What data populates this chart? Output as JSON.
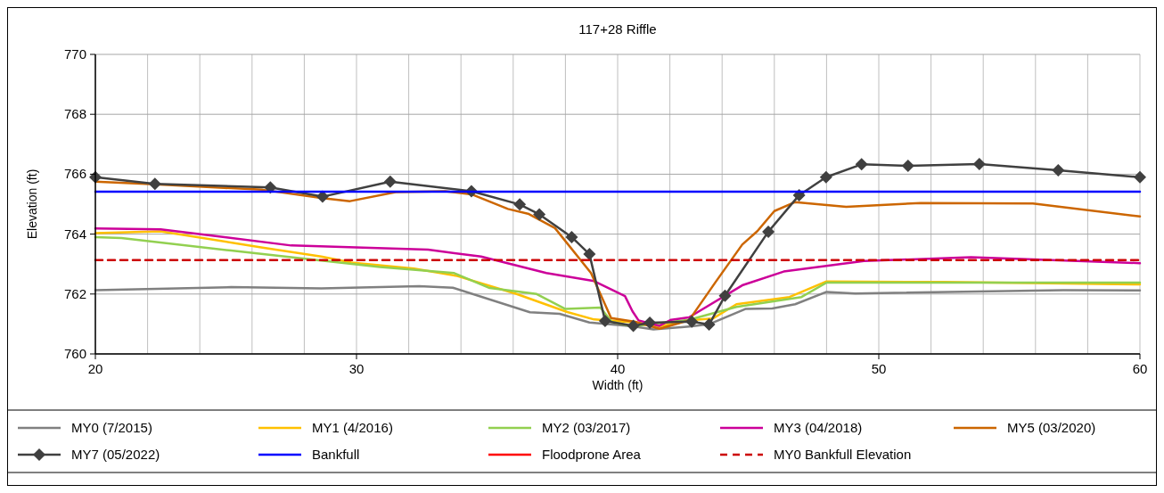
{
  "chart_data": {
    "type": "line",
    "title": "117+28 Riffle",
    "xlabel": "Width (ft)",
    "ylabel": "Elevation (ft)",
    "xlim": [
      20,
      60
    ],
    "ylim": [
      760,
      770
    ],
    "xticks": [
      20,
      {
        "value": 22,
        "label": null
      },
      {
        "value": 24,
        "label": null
      },
      {
        "value": 26,
        "label": null
      },
      {
        "value": 28,
        "label": null
      },
      30,
      {
        "value": 32,
        "label": null
      },
      {
        "value": 34,
        "label": null
      },
      {
        "value": 36,
        "label": null
      },
      {
        "value": 38,
        "label": null
      },
      40,
      {
        "value": 42,
        "label": null
      },
      {
        "value": 44,
        "label": null
      },
      {
        "value": 46,
        "label": null
      },
      {
        "value": 48,
        "label": null
      },
      50,
      {
        "value": 52,
        "label": null
      },
      {
        "value": 54,
        "label": null
      },
      {
        "value": 56,
        "label": null
      },
      {
        "value": 58,
        "label": null
      },
      60
    ],
    "yticks": [
      760,
      762,
      764,
      766,
      768,
      770
    ],
    "grid": true,
    "legend": "bottom",
    "marker": "none",
    "line_style": "solid",
    "series": [
      {
        "name": "MY0 (7/2015)",
        "color": "#808080",
        "x": [
          20,
          25.2,
          28.65,
          32.4,
          33.69,
          36.64,
          37.78,
          38.92,
          40.57,
          41.37,
          42.84,
          43.53,
          44.89,
          45.92,
          46.8,
          48.0,
          49.1,
          57.06,
          60
        ],
        "values": [
          762.13,
          762.23,
          762.19,
          762.26,
          762.21,
          761.39,
          761.34,
          761.05,
          760.92,
          760.82,
          760.92,
          761.0,
          761.5,
          761.52,
          761.66,
          762.07,
          762.02,
          762.13,
          762.12
        ]
      },
      {
        "name": "MY1 (4/2016)",
        "color": "#ffc000",
        "x": [
          20,
          22.5,
          26.4,
          28.65,
          29.8,
          32.2,
          33.86,
          36.13,
          38.07,
          39.1,
          40.68,
          41.6,
          42.73,
          43.64,
          44.55,
          46.58,
          48.0,
          52.5,
          60
        ],
        "values": [
          764.03,
          764.09,
          763.55,
          763.25,
          763.05,
          762.85,
          762.6,
          762.0,
          761.4,
          761.15,
          761.05,
          760.92,
          761.12,
          761.18,
          761.66,
          761.9,
          762.42,
          762.4,
          762.32
        ]
      },
      {
        "name": "MY2 (03/2017)",
        "color": "#92d050",
        "x": [
          20,
          21.0,
          25.2,
          28.65,
          30.9,
          33.74,
          35.1,
          36.9,
          38.0,
          39.34,
          39.77,
          40.57,
          42.73,
          44.55,
          47.04,
          48.0,
          60
        ],
        "values": [
          763.9,
          763.87,
          763.45,
          763.12,
          762.9,
          762.7,
          762.2,
          762.0,
          761.5,
          761.55,
          761.07,
          760.92,
          761.14,
          761.57,
          761.9,
          762.38,
          762.38
        ]
      },
      {
        "name": "MY3 (04/2018)",
        "color": "#cc0099",
        "x": [
          20,
          22.5,
          27.5,
          32.74,
          34.77,
          37.27,
          39.1,
          40.28,
          40.57,
          40.8,
          41.6,
          42.05,
          42.73,
          44.77,
          46.36,
          49.43,
          53.53,
          60
        ],
        "values": [
          764.19,
          764.16,
          763.62,
          763.48,
          763.25,
          762.7,
          762.43,
          761.93,
          761.42,
          761.12,
          760.94,
          761.14,
          761.22,
          762.29,
          762.75,
          763.1,
          763.23,
          763.03
        ]
      },
      {
        "name": "MY5 (03/2020)",
        "color": "#cc6600",
        "x": [
          20,
          22.3,
          26.4,
          28.7,
          29.75,
          31.5,
          33.4,
          34.4,
          35.8,
          36.6,
          37.6,
          38.98,
          39.75,
          40.68,
          41.6,
          42.73,
          43.75,
          44.77,
          45.35,
          46.0,
          46.8,
          48.75,
          51.6,
          55.9,
          60
        ],
        "values": [
          765.75,
          765.66,
          765.48,
          765.2,
          765.1,
          765.4,
          765.43,
          765.33,
          764.84,
          764.67,
          764.2,
          762.7,
          761.2,
          761.07,
          760.84,
          761.12,
          762.4,
          763.65,
          764.1,
          764.77,
          765.07,
          764.91,
          765.04,
          765.02,
          764.59
        ]
      },
      {
        "name": "MY7 (05/2022)",
        "color": "#404040",
        "marker": "diamond",
        "x": [
          20,
          22.28,
          26.7,
          28.7,
          31.29,
          34.4,
          36.25,
          37.0,
          38.24,
          38.92,
          39.52,
          40.6,
          41.23,
          42.84,
          43.5,
          44.11,
          45.77,
          46.95,
          47.98,
          49.34,
          51.12,
          53.85,
          56.87,
          60
        ],
        "values": [
          765.9,
          765.68,
          765.56,
          765.25,
          765.75,
          765.43,
          764.99,
          764.66,
          763.9,
          763.33,
          761.1,
          760.94,
          761.04,
          761.08,
          760.98,
          761.94,
          764.08,
          765.3,
          765.9,
          766.33,
          766.28,
          766.34,
          766.13,
          765.9
        ]
      },
      {
        "name": "Bankfull",
        "color": "#0000ff",
        "x": [
          20,
          60
        ],
        "values": [
          765.42,
          765.42
        ]
      },
      {
        "name": "Floodprone Area",
        "color": "#ff0000"
      },
      {
        "name": "MY0 Bankfull Elevation",
        "color": "#cc0000",
        "line_style": "dashed",
        "x": [
          20,
          60
        ],
        "values": [
          763.13,
          763.13
        ]
      }
    ]
  }
}
